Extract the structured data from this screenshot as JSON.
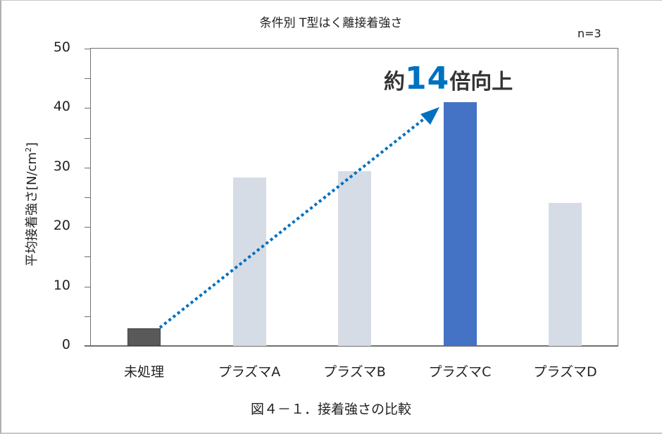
{
  "chart_data": {
    "type": "bar",
    "title": "条件別 T型はく離接着強さ",
    "annotation_n": "n=3",
    "categories": [
      "未処理",
      "プラズマA",
      "プラズマB",
      "プラズマC",
      "プラズマD"
    ],
    "values": [
      3.0,
      28.3,
      29.4,
      41.0,
      24.0
    ],
    "colors": [
      "#595959",
      "#d6dce5",
      "#d6dce5",
      "#4472c4",
      "#d6dce5"
    ],
    "xlabel": "",
    "ylabel": "平均接着強さ[N/cm²]",
    "ylim": [
      0,
      50
    ],
    "yticks": [
      0,
      10,
      20,
      30,
      40,
      50
    ],
    "grid": false,
    "legend": "none",
    "callout": {
      "prefix": "約",
      "number": "14",
      "suffix": "倍向上",
      "number_color": "#0070c0"
    },
    "arrow": {
      "from": "未処理",
      "to": "プラズマC",
      "style": "dotted",
      "color": "#0070c0"
    },
    "caption": "図４－１．接着強さの比較"
  },
  "ylabel_main": "平均接着強さ[N/cm",
  "ylabel_sup": "2",
  "ylabel_end": "]"
}
